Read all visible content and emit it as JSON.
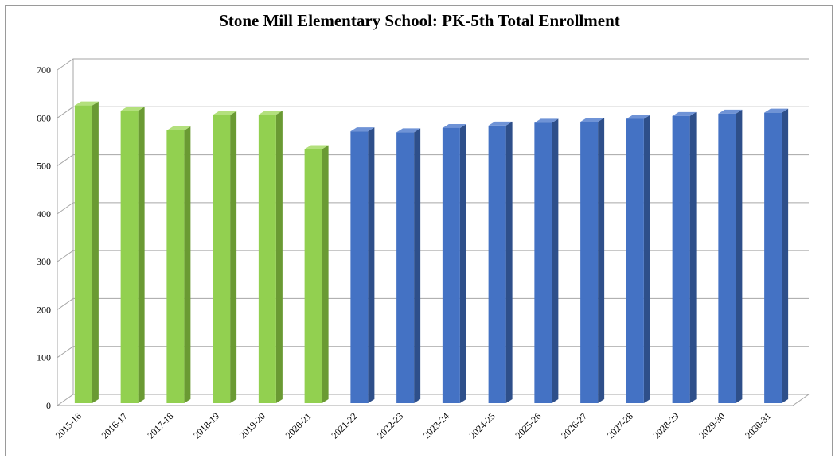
{
  "chart_data": {
    "type": "bar",
    "title": "Stone Mill Elementary School: PK-5th Total Enrollment",
    "categories": [
      "2015-16",
      "2016-17",
      "2017-18",
      "2018-19",
      "2019-20",
      "2020-21",
      "2021-22",
      "2022-23",
      "2023-24",
      "2024-25",
      "2025-26",
      "2026-27",
      "2027-28",
      "2028-29",
      "2029-30",
      "2030-31"
    ],
    "values": [
      626,
      615,
      574,
      606,
      607,
      535,
      572,
      570,
      579,
      584,
      590,
      592,
      598,
      604,
      609,
      611
    ],
    "yticks": [
      "0",
      "100",
      "200",
      "300",
      "400",
      "500",
      "600",
      "700"
    ],
    "ylim": [
      0,
      700
    ],
    "grid": true,
    "legend": "none",
    "colors": {
      "actual_front": "#92d050",
      "actual_side": "#6a9a33",
      "actual_top": "#b3e07d",
      "projected_front": "#4472c4",
      "projected_side": "#2e4f8a",
      "projected_top": "#6f93d6",
      "gridline": "#a6a6a6"
    },
    "actual_count": 6
  }
}
